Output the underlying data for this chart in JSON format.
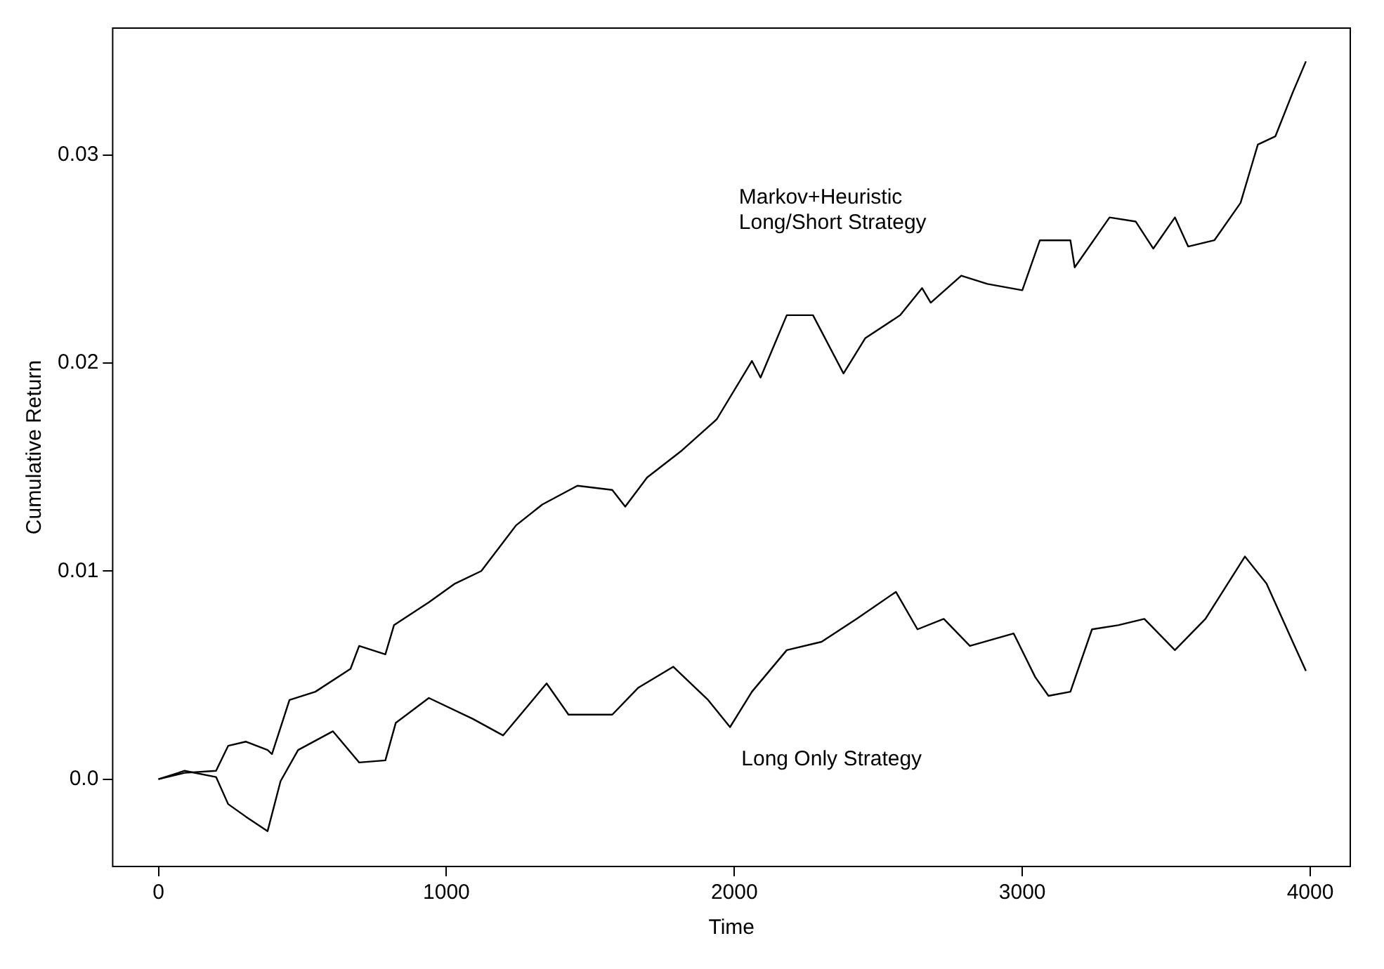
{
  "chart_data": {
    "type": "line",
    "xlabel": "Time",
    "ylabel": "Cumulative Return",
    "xlim": [
      -159,
      4139
    ],
    "ylim": [
      -0.0042,
      0.0361
    ],
    "xticks": [
      0,
      1000,
      2000,
      3000,
      4000
    ],
    "yticks": [
      {
        "value": 0,
        "label": "0.0"
      },
      0.01,
      0.02,
      0.03
    ],
    "grid": false,
    "legend": false,
    "marker": "none",
    "line_style": "solid",
    "series": [
      {
        "name": "Markov+Heuristic Long/Short Strategy",
        "color": "#000000",
        "x": [
          0,
          91,
          200,
          242,
          303,
          379,
          394,
          455,
          545,
          667,
          697,
          788,
          818,
          939,
          1030,
          1121,
          1242,
          1333,
          1455,
          1576,
          1621,
          1697,
          1818,
          1939,
          2061,
          2091,
          2182,
          2273,
          2379,
          2455,
          2576,
          2652,
          2682,
          2788,
          2879,
          3000,
          3061,
          3167,
          3182,
          3303,
          3394,
          3455,
          3530,
          3576,
          3667,
          3758,
          3818,
          3879,
          3939,
          3985
        ],
        "values": [
          0,
          0.0003,
          0.0004,
          0.0016,
          0.0018,
          0.0014,
          0.0012,
          0.0038,
          0.0042,
          0.0053,
          0.0064,
          0.006,
          0.0074,
          0.0085,
          0.0094,
          0.01,
          0.0122,
          0.0132,
          0.0141,
          0.0139,
          0.0131,
          0.0145,
          0.0158,
          0.0173,
          0.0201,
          0.0193,
          0.0223,
          0.0223,
          0.0195,
          0.0212,
          0.0223,
          0.0236,
          0.0229,
          0.0242,
          0.0238,
          0.0235,
          0.0259,
          0.0259,
          0.0246,
          0.027,
          0.0268,
          0.0255,
          0.027,
          0.0256,
          0.0259,
          0.0277,
          0.0305,
          0.0309,
          0.033,
          0.0345
        ]
      },
      {
        "name": "Long Only Strategy",
        "color": "#000000",
        "x": [
          0,
          91,
          200,
          242,
          303,
          379,
          424,
          485,
          606,
          697,
          788,
          824,
          939,
          1091,
          1197,
          1348,
          1424,
          1576,
          1667,
          1788,
          1909,
          1985,
          2061,
          2182,
          2303,
          2424,
          2561,
          2636,
          2727,
          2818,
          2970,
          3045,
          3091,
          3167,
          3242,
          3333,
          3424,
          3530,
          3636,
          3773,
          3848,
          3939,
          3985
        ],
        "values": [
          0,
          0.0004,
          0.0001,
          -0.0012,
          -0.0018,
          -0.0025,
          -0.0001,
          0.0014,
          0.0023,
          0.0008,
          0.0009,
          0.0027,
          0.0039,
          0.0029,
          0.0021,
          0.0046,
          0.0031,
          0.0031,
          0.0044,
          0.0054,
          0.0038,
          0.0025,
          0.0042,
          0.0062,
          0.0066,
          0.0077,
          0.009,
          0.0072,
          0.0077,
          0.0064,
          0.007,
          0.0049,
          0.004,
          0.0042,
          0.0072,
          0.0074,
          0.0077,
          0.0062,
          0.0077,
          0.0107,
          0.0094,
          0.0066,
          0.0052
        ]
      }
    ]
  }
}
